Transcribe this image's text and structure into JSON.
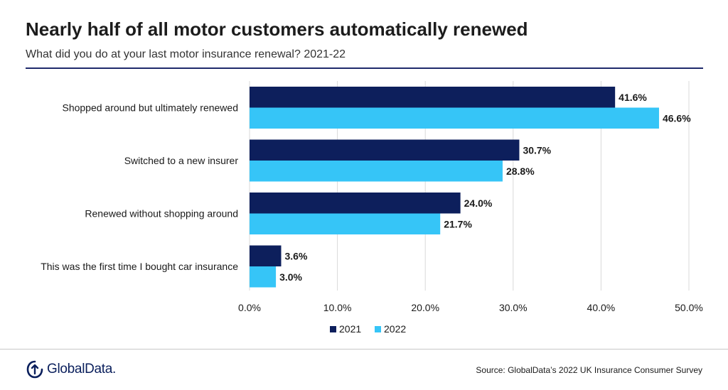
{
  "header": {
    "title": "Nearly half of all motor customers automatically renewed",
    "subtitle": "What did you do at your last motor insurance renewal? 2021-22"
  },
  "footer": {
    "logo_text": "GlobalData.",
    "source": "Source: GlobalData’s 2022 UK Insurance Consumer Survey"
  },
  "colors": {
    "series_2021": "#0d1f5c",
    "series_2022": "#36c5f7",
    "gridline": "#d9d9d9",
    "rule": "#1f2a6b"
  },
  "chart_data": {
    "type": "bar",
    "orientation": "horizontal",
    "title": "Nearly half of all motor customers automatically renewed",
    "subtitle": "What did you do at your last motor insurance renewal? 2021-22",
    "categories": [
      "Shopped around but ultimately renewed",
      "Switched to a new insurer",
      "Renewed without shopping around",
      "This was the first time I bought car insurance"
    ],
    "series": [
      {
        "name": "2021",
        "values": [
          41.6,
          30.7,
          24.0,
          3.6
        ],
        "labels": [
          "41.6%",
          "30.7%",
          "24.0%",
          "3.6%"
        ]
      },
      {
        "name": "2022",
        "values": [
          46.6,
          28.8,
          21.7,
          3.0
        ],
        "labels": [
          "46.6%",
          "28.8%",
          "21.7%",
          "3.0%"
        ]
      }
    ],
    "xlim": [
      0,
      50
    ],
    "xticks": [
      "0.0%",
      "10.0%",
      "20.0%",
      "30.0%",
      "40.0%",
      "50.0%"
    ],
    "grid": true,
    "legend": "bottom-center",
    "data_labels": true
  }
}
